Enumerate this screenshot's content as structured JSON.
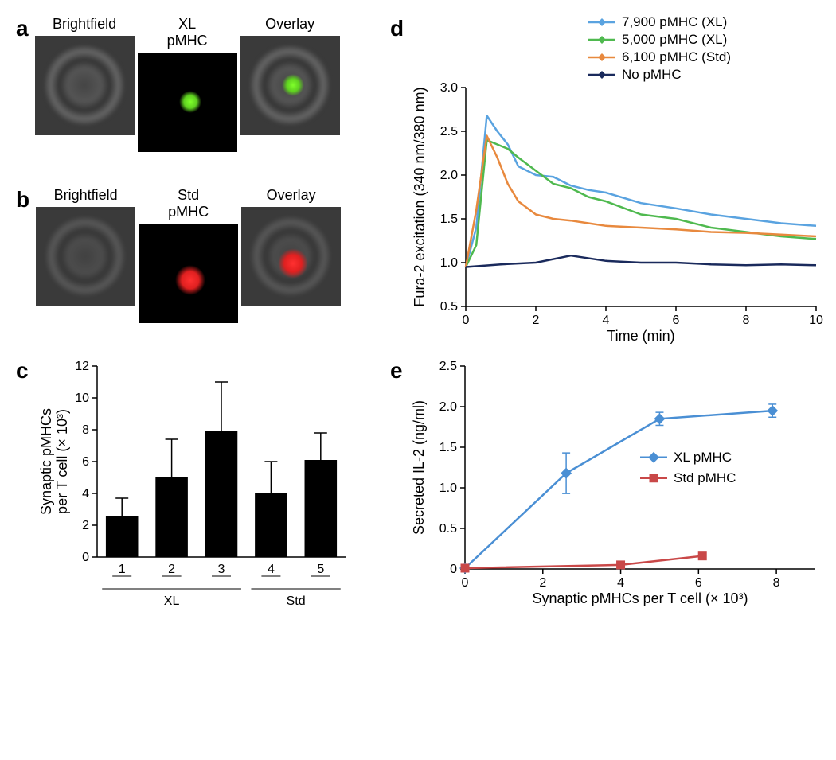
{
  "panel_a": {
    "label": "a",
    "titles": [
      "Brightfield",
      "XL\npMHC",
      "Overlay"
    ],
    "spot_color": "#7fff2a"
  },
  "panel_b": {
    "label": "b",
    "titles": [
      "Brightfield",
      "Std\npMHC",
      "Overlay"
    ],
    "spot_color": "#ff3030"
  },
  "panel_c": {
    "label": "c",
    "type": "bar",
    "ylabel": "Synaptic pMHCs\nper T cell (× 10³)",
    "ylim": [
      0,
      12
    ],
    "ytick_step": 2,
    "categories": [
      "1",
      "2",
      "3",
      "4",
      "5"
    ],
    "group_labels": [
      "XL",
      "Std"
    ],
    "group_split": 3,
    "values": [
      2.6,
      5.0,
      7.9,
      4.0,
      6.1
    ],
    "errors": [
      1.1,
      2.4,
      3.1,
      2.0,
      1.7
    ],
    "bar_color": "#000000",
    "error_color": "#000000",
    "axis_color": "#000000",
    "tick_fontsize": 16,
    "label_fontsize": 18
  },
  "panel_d": {
    "label": "d",
    "type": "line",
    "xlabel": "Time (min)",
    "ylabel": "Fura-2 excitation (340 nm/380 nm)",
    "xlim": [
      0,
      10
    ],
    "ylim": [
      0.5,
      3.0
    ],
    "xtick_step": 2,
    "ytick_step": 0.5,
    "axis_color": "#000000",
    "tick_fontsize": 16,
    "label_fontsize": 18,
    "legend_fontsize": 17,
    "line_width": 2.5,
    "series": [
      {
        "name": "7,900 pMHC (XL)",
        "color": "#5aa3e0",
        "x": [
          0,
          0.3,
          0.6,
          0.9,
          1.2,
          1.5,
          2,
          2.5,
          3,
          3.5,
          4,
          5,
          6,
          7,
          8,
          9,
          10
        ],
        "y": [
          0.95,
          1.4,
          2.68,
          2.5,
          2.35,
          2.1,
          2.0,
          1.98,
          1.88,
          1.83,
          1.8,
          1.68,
          1.62,
          1.55,
          1.5,
          1.45,
          1.42
        ]
      },
      {
        "name": "5,000 pMHC (XL)",
        "color": "#4fb94f",
        "x": [
          0,
          0.3,
          0.6,
          0.9,
          1.2,
          1.5,
          2,
          2.5,
          3,
          3.5,
          4,
          5,
          6,
          7,
          8,
          9,
          10
        ],
        "y": [
          0.95,
          1.2,
          2.4,
          2.35,
          2.3,
          2.2,
          2.05,
          1.9,
          1.85,
          1.75,
          1.7,
          1.55,
          1.5,
          1.4,
          1.35,
          1.3,
          1.27
        ]
      },
      {
        "name": "6,100 pMHC (Std)",
        "color": "#e8893e",
        "x": [
          0,
          0.3,
          0.6,
          0.9,
          1.2,
          1.5,
          2,
          2.5,
          3,
          3.5,
          4,
          5,
          6,
          7,
          8,
          9,
          10
        ],
        "y": [
          0.95,
          1.6,
          2.45,
          2.2,
          1.9,
          1.7,
          1.55,
          1.5,
          1.48,
          1.45,
          1.42,
          1.4,
          1.38,
          1.35,
          1.34,
          1.32,
          1.3
        ]
      },
      {
        "name": "No pMHC",
        "color": "#1a2a5c",
        "x": [
          0,
          1,
          2,
          3,
          4,
          5,
          6,
          7,
          8,
          9,
          10
        ],
        "y": [
          0.95,
          0.98,
          1.0,
          1.08,
          1.02,
          1.0,
          1.0,
          0.98,
          0.97,
          0.98,
          0.97
        ]
      }
    ]
  },
  "panel_e": {
    "label": "e",
    "type": "line-marker",
    "xlabel": "Synaptic pMHCs per T cell (× 10³)",
    "ylabel": "Secreted IL-2 (ng/ml)",
    "xlim": [
      0,
      9
    ],
    "ylim": [
      0,
      2.5
    ],
    "xtick_step": 2,
    "ytick_step": 0.5,
    "axis_color": "#000000",
    "tick_fontsize": 16,
    "label_fontsize": 18,
    "legend_fontsize": 17,
    "line_width": 2.5,
    "marker_size": 10,
    "series": [
      {
        "name": "XL pMHC",
        "color": "#4a8fd4",
        "marker": "diamond",
        "x": [
          0,
          2.6,
          5.0,
          7.9
        ],
        "y": [
          0.01,
          1.18,
          1.85,
          1.95
        ],
        "err": [
          0,
          0.25,
          0.08,
          0.08
        ]
      },
      {
        "name": "Std pMHC",
        "color": "#c94848",
        "marker": "square",
        "x": [
          0,
          4.0,
          6.1
        ],
        "y": [
          0.01,
          0.05,
          0.16
        ],
        "err": [
          0,
          0.03,
          0.03
        ]
      }
    ]
  }
}
